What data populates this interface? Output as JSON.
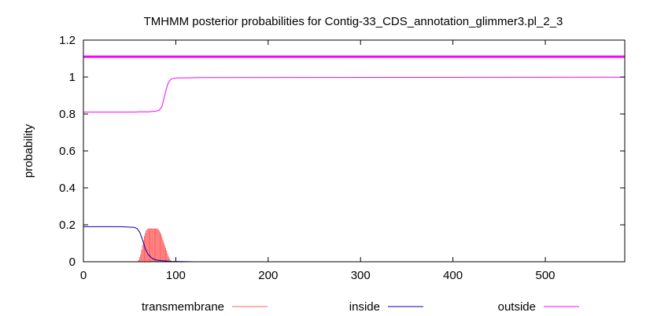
{
  "chart_data": {
    "type": "line",
    "title": "TMHMM posterior probabilities for Contig-33_CDS_annotation_glimmer3.pl_2_3",
    "xlabel": "",
    "ylabel": "probability",
    "xlim": [
      0,
      586
    ],
    "ylim": [
      0,
      1.2
    ],
    "xticks": [
      0,
      100,
      200,
      300,
      400,
      500
    ],
    "yticks": [
      0,
      0.2,
      0.4,
      0.6,
      0.8,
      1,
      1.2
    ],
    "xtick_labels": [
      "0",
      "100",
      "200",
      "300",
      "400",
      "500"
    ],
    "ytick_labels": [
      "0",
      "0.2",
      "0.4",
      "0.6",
      "0.8",
      "1",
      "1.2"
    ],
    "grid": false,
    "legend_position": "bottom",
    "reference_line": {
      "y": 1.11,
      "color": "#ff00ff"
    },
    "series": [
      {
        "name": "transmembrane",
        "color": "#ff6060",
        "style": "impulse",
        "points": [
          [
            58,
            0.0
          ],
          [
            60,
            0.01
          ],
          [
            62,
            0.04
          ],
          [
            64,
            0.09
          ],
          [
            66,
            0.14
          ],
          [
            68,
            0.17
          ],
          [
            70,
            0.18
          ],
          [
            72,
            0.18
          ],
          [
            74,
            0.18
          ],
          [
            76,
            0.18
          ],
          [
            78,
            0.18
          ],
          [
            80,
            0.18
          ],
          [
            82,
            0.17
          ],
          [
            84,
            0.15
          ],
          [
            86,
            0.12
          ],
          [
            88,
            0.09
          ],
          [
            90,
            0.06
          ],
          [
            92,
            0.03
          ],
          [
            94,
            0.01
          ],
          [
            96,
            0.0
          ]
        ]
      },
      {
        "name": "inside",
        "color": "#0000c0",
        "style": "line",
        "points": [
          [
            0,
            0.19
          ],
          [
            40,
            0.19
          ],
          [
            55,
            0.186
          ],
          [
            58,
            0.18
          ],
          [
            61,
            0.16
          ],
          [
            64,
            0.12
          ],
          [
            67,
            0.07
          ],
          [
            70,
            0.04
          ],
          [
            74,
            0.02
          ],
          [
            78,
            0.01
          ],
          [
            85,
            0.005
          ],
          [
            95,
            0.002
          ],
          [
            120,
            0.0
          ],
          [
            586,
            0.0
          ]
        ]
      },
      {
        "name": "outside",
        "color": "#ff00ff",
        "style": "line",
        "points": [
          [
            0,
            0.81
          ],
          [
            55,
            0.81
          ],
          [
            60,
            0.812
          ],
          [
            70,
            0.812
          ],
          [
            78,
            0.815
          ],
          [
            82,
            0.82
          ],
          [
            85,
            0.84
          ],
          [
            88,
            0.9
          ],
          [
            90,
            0.94
          ],
          [
            92,
            0.97
          ],
          [
            95,
            0.99
          ],
          [
            100,
            0.995
          ],
          [
            130,
            0.997
          ],
          [
            586,
            0.999
          ]
        ]
      }
    ]
  }
}
